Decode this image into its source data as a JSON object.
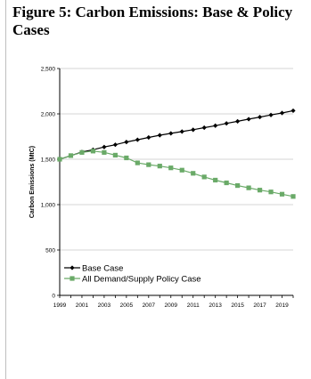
{
  "figure": {
    "title": "Figure 5: Carbon Emissions: Base & Policy Cases"
  },
  "colors": {
    "base_case": "#000000",
    "policy_case": "#6aaa68",
    "axis": "#000000",
    "gridline": "#c8c8c8"
  },
  "chart_data": {
    "type": "line",
    "title": "",
    "xlabel": "",
    "ylabel": "Carbon Emissions (MtC)",
    "x": [
      1999,
      2000,
      2001,
      2002,
      2003,
      2004,
      2005,
      2006,
      2007,
      2008,
      2009,
      2010,
      2011,
      2012,
      2013,
      2014,
      2015,
      2016,
      2017,
      2018,
      2019,
      2020
    ],
    "x_tick_labels": [
      "1999",
      "2001",
      "2003",
      "2005",
      "2007",
      "2009",
      "2011",
      "2013",
      "2015",
      "2017",
      "2019"
    ],
    "ylim": [
      0,
      2500
    ],
    "y_ticks": [
      0,
      500,
      1000,
      1500,
      2000,
      2500
    ],
    "y_tick_labels": [
      "0",
      "500",
      "1,000",
      "1,500",
      "2,000",
      "2,500"
    ],
    "grid": "horizontal major gridlines",
    "legend_position": "bottom-left inside plot",
    "series": [
      {
        "name": "Base Case",
        "marker": "diamond",
        "color": "#000000",
        "values": [
          1500,
          1540,
          1580,
          1605,
          1635,
          1660,
          1690,
          1715,
          1740,
          1765,
          1785,
          1805,
          1825,
          1848,
          1870,
          1895,
          1918,
          1942,
          1965,
          1988,
          2010,
          2035
        ]
      },
      {
        "name": "All Demand/Supply Policy Case",
        "marker": "square",
        "color": "#6aaa68",
        "values": [
          1500,
          1540,
          1575,
          1590,
          1575,
          1545,
          1515,
          1460,
          1440,
          1425,
          1405,
          1380,
          1345,
          1305,
          1270,
          1240,
          1210,
          1185,
          1160,
          1140,
          1115,
          1090
        ]
      }
    ]
  }
}
